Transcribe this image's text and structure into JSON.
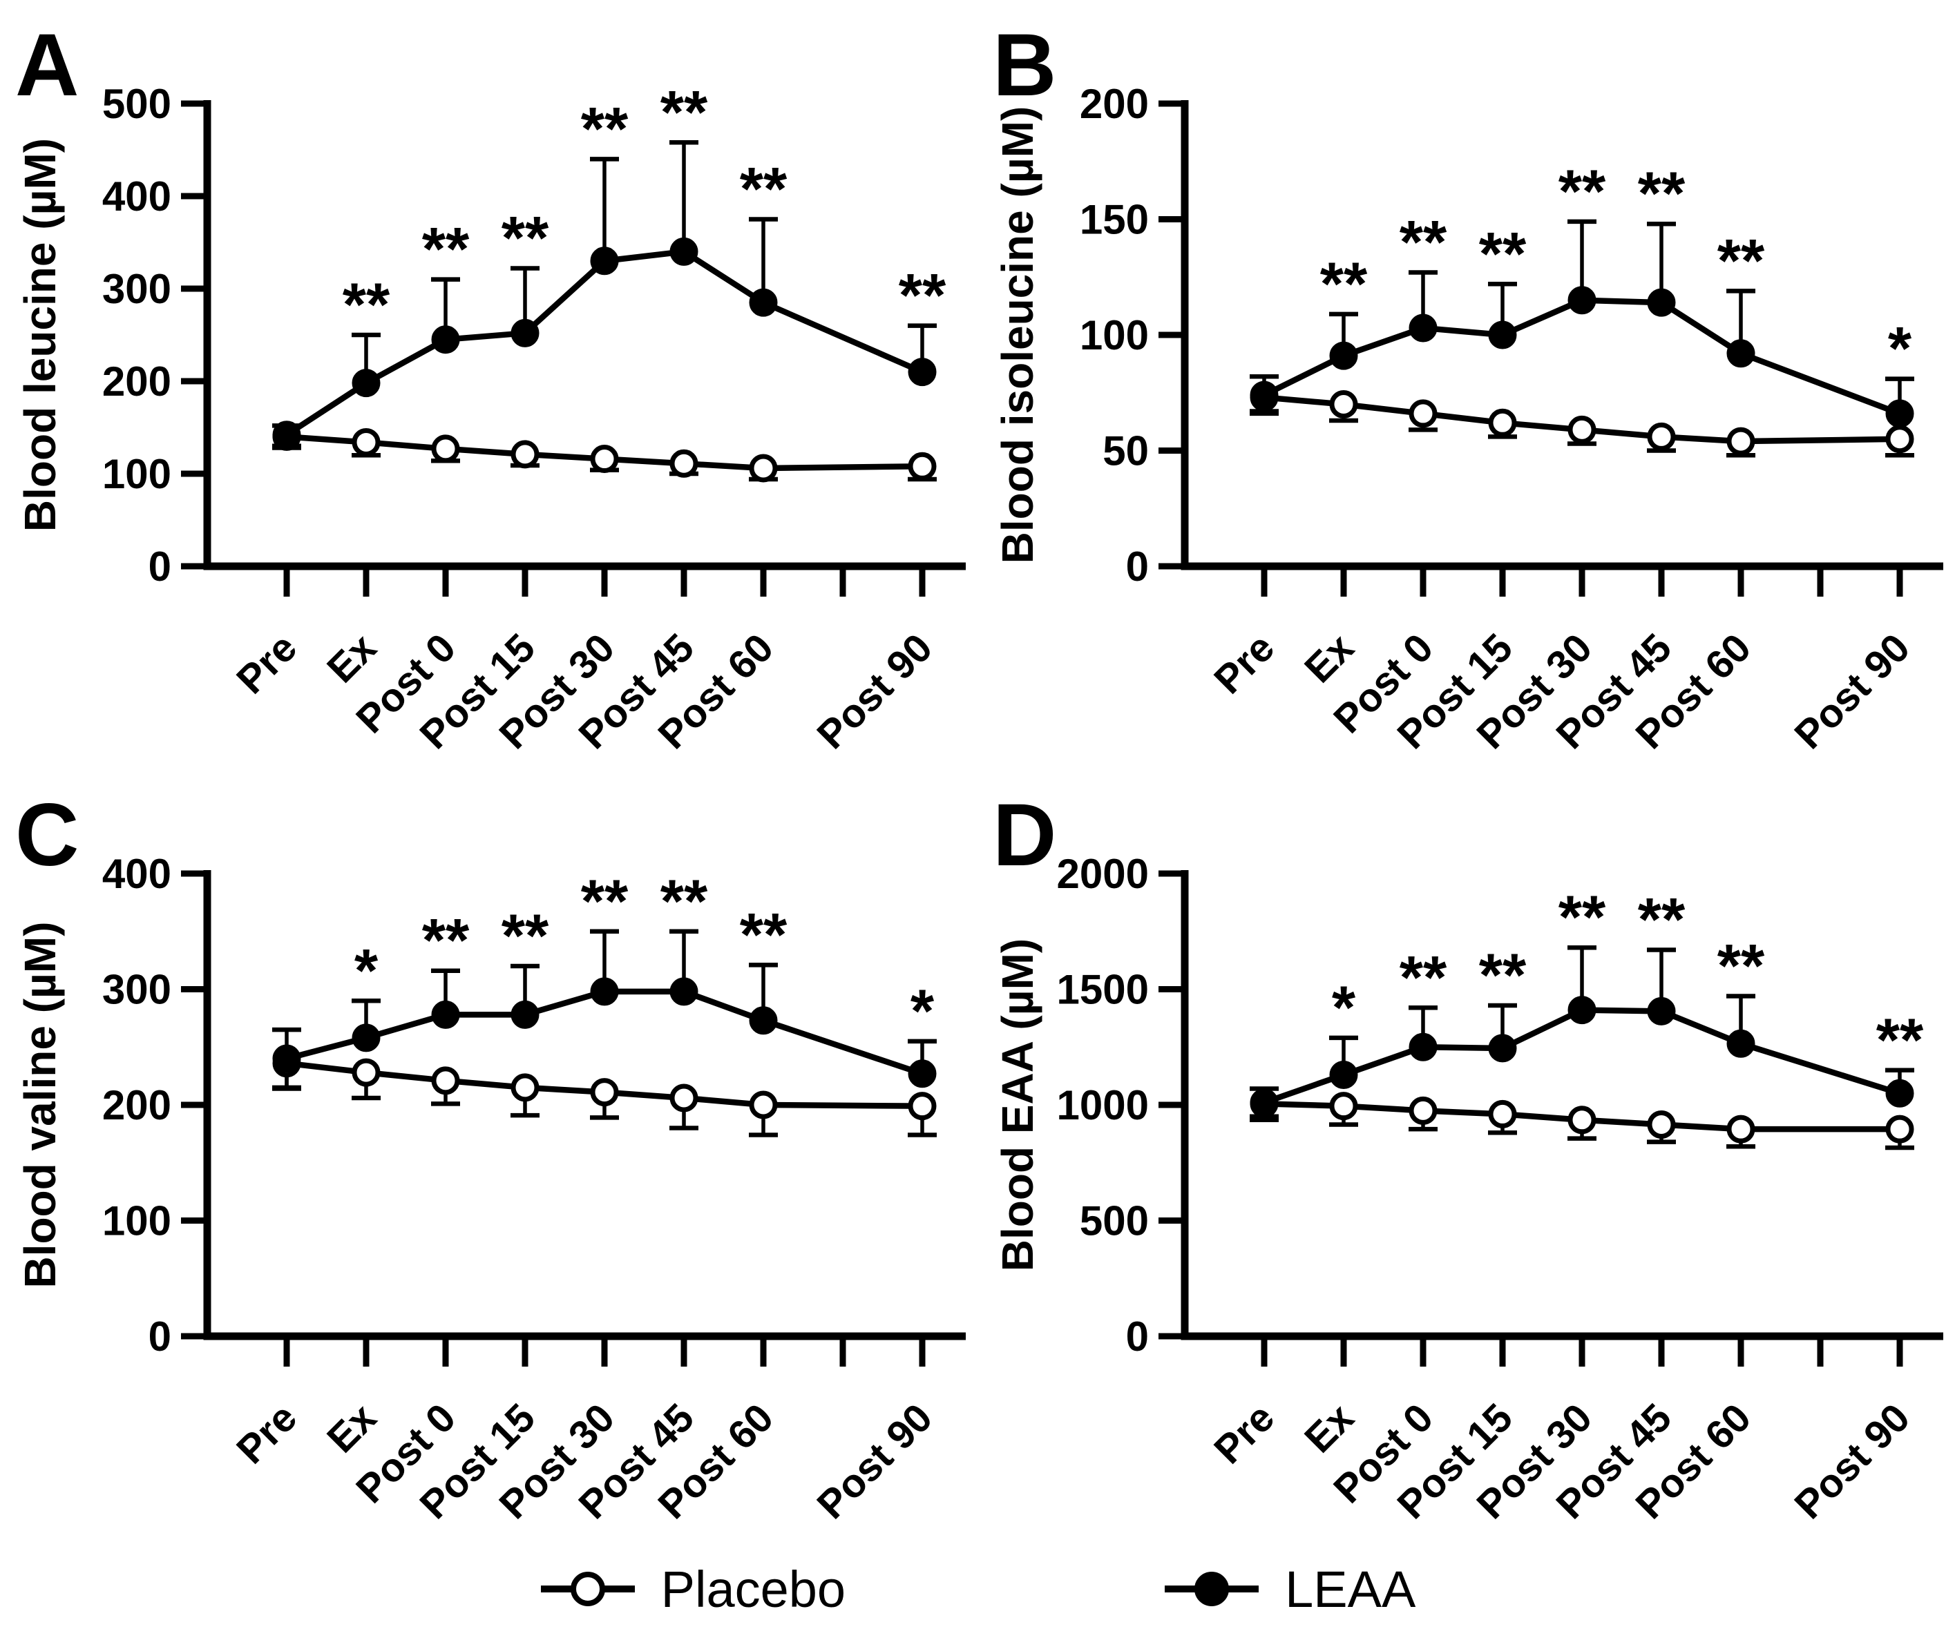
{
  "colors": {
    "ink": "#000000",
    "paper": "#ffffff",
    "panel_letter": "#1c1c1c"
  },
  "legend": {
    "items": [
      {
        "label": "Placebo",
        "marker": "open"
      },
      {
        "label": "LEAA",
        "marker": "filled"
      }
    ]
  },
  "chart_data": [
    {
      "type": "line",
      "panel_label": "A",
      "ylabel": "Blood leucine (µM)",
      "xlabel": "",
      "ylim": [
        0,
        500
      ],
      "yticks": [
        0,
        100,
        200,
        300,
        400,
        500
      ],
      "categories": [
        "Pre",
        "Ex",
        "Post 0",
        "Post 15",
        "Post 30",
        "Post 45",
        "Post 60",
        "Post 90"
      ],
      "category_tick_slots": [
        0,
        1,
        2,
        3,
        4,
        5,
        6,
        8
      ],
      "num_tick_slots": 9,
      "grid": "off",
      "series": [
        {
          "name": "Placebo",
          "marker": "open",
          "values": [
            140,
            134,
            127,
            121,
            116,
            111,
            106,
            108
          ],
          "err_up": [
            0,
            0,
            0,
            0,
            0,
            0,
            0,
            0
          ],
          "err_down": [
            12,
            14,
            13,
            12,
            12,
            11,
            12,
            14
          ]
        },
        {
          "name": "LEAA",
          "marker": "filled",
          "values": [
            142,
            198,
            245,
            252,
            330,
            340,
            285,
            210
          ],
          "err_up": [
            10,
            52,
            65,
            70,
            110,
            118,
            90,
            50
          ],
          "err_down": [
            12,
            0,
            0,
            0,
            0,
            0,
            0,
            0
          ]
        }
      ],
      "significance": [
        "",
        "**",
        "**",
        "**",
        "**",
        "**",
        "**",
        "**"
      ]
    },
    {
      "type": "line",
      "panel_label": "B",
      "ylabel": "Blood isoleucine (µM)",
      "xlabel": "",
      "ylim": [
        0,
        200
      ],
      "yticks": [
        0,
        50,
        100,
        150,
        200
      ],
      "categories": [
        "Pre",
        "Ex",
        "Post 0",
        "Post 15",
        "Post 30",
        "Post 45",
        "Post 60",
        "Post 90"
      ],
      "category_tick_slots": [
        0,
        1,
        2,
        3,
        4,
        5,
        6,
        8
      ],
      "num_tick_slots": 9,
      "grid": "off",
      "series": [
        {
          "name": "Placebo",
          "marker": "open",
          "values": [
            73,
            70,
            66,
            62,
            59,
            56,
            54,
            55
          ],
          "err_up": [
            0,
            0,
            0,
            0,
            0,
            0,
            0,
            0
          ],
          "err_down": [
            6,
            7,
            7,
            6,
            6,
            6,
            6,
            7
          ]
        },
        {
          "name": "LEAA",
          "marker": "filled",
          "values": [
            74,
            91,
            103,
            100,
            115,
            114,
            92,
            66
          ],
          "err_up": [
            8,
            18,
            24,
            22,
            34,
            34,
            27,
            15
          ],
          "err_down": [
            8,
            0,
            0,
            0,
            0,
            0,
            0,
            0
          ]
        }
      ],
      "significance": [
        "",
        "**",
        "**",
        "**",
        "**",
        "**",
        "**",
        "*"
      ]
    },
    {
      "type": "line",
      "panel_label": "C",
      "ylabel": "Blood valine (µM)",
      "xlabel": "",
      "ylim": [
        0,
        400
      ],
      "yticks": [
        0,
        100,
        200,
        300,
        400
      ],
      "categories": [
        "Pre",
        "Ex",
        "Post 0",
        "Post 15",
        "Post 30",
        "Post 45",
        "Post 60",
        "Post 90"
      ],
      "category_tick_slots": [
        0,
        1,
        2,
        3,
        4,
        5,
        6,
        8
      ],
      "num_tick_slots": 9,
      "grid": "off",
      "series": [
        {
          "name": "Placebo",
          "marker": "open",
          "values": [
            236,
            228,
            221,
            215,
            211,
            206,
            200,
            199
          ],
          "err_up": [
            0,
            0,
            0,
            0,
            0,
            0,
            0,
            0
          ],
          "err_down": [
            22,
            22,
            20,
            24,
            22,
            26,
            26,
            25
          ]
        },
        {
          "name": "LEAA",
          "marker": "filled",
          "values": [
            240,
            258,
            278,
            278,
            298,
            298,
            273,
            227
          ],
          "err_up": [
            25,
            32,
            38,
            42,
            52,
            52,
            48,
            28
          ],
          "err_down": [
            25,
            0,
            0,
            0,
            0,
            0,
            0,
            0
          ]
        }
      ],
      "significance": [
        "",
        "*",
        "**",
        "**",
        "**",
        "**",
        "**",
        "*"
      ]
    },
    {
      "type": "line",
      "panel_label": "D",
      "ylabel": "Blood EAA (µM)",
      "xlabel": "",
      "ylim": [
        0,
        2000
      ],
      "yticks": [
        0,
        500,
        1000,
        1500,
        2000
      ],
      "categories": [
        "Pre",
        "Ex",
        "Post 0",
        "Post 15",
        "Post 30",
        "Post 45",
        "Post 60",
        "Post 90"
      ],
      "category_tick_slots": [
        0,
        1,
        2,
        3,
        4,
        5,
        6,
        8
      ],
      "num_tick_slots": 9,
      "grid": "off",
      "series": [
        {
          "name": "Placebo",
          "marker": "open",
          "values": [
            1005,
            995,
            975,
            960,
            935,
            915,
            895,
            895
          ],
          "err_up": [
            0,
            0,
            0,
            0,
            0,
            0,
            0,
            0
          ],
          "err_down": [
            70,
            80,
            80,
            80,
            80,
            75,
            75,
            80
          ]
        },
        {
          "name": "LEAA",
          "marker": "filled",
          "values": [
            1010,
            1130,
            1250,
            1245,
            1410,
            1405,
            1265,
            1050
          ],
          "err_up": [
            60,
            160,
            170,
            185,
            270,
            265,
            205,
            100
          ],
          "err_down": [
            60,
            0,
            0,
            0,
            0,
            0,
            0,
            0
          ]
        }
      ],
      "significance": [
        "",
        "*",
        "**",
        "**",
        "**",
        "**",
        "**",
        "**"
      ]
    }
  ]
}
